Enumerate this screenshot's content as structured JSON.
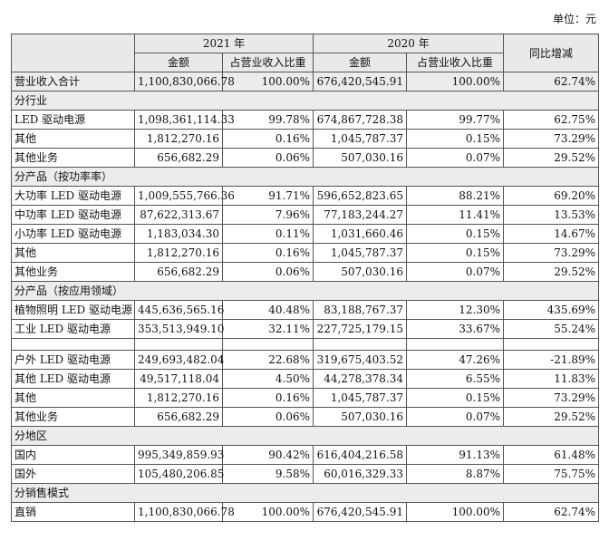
{
  "unit": "单位：元",
  "header": {
    "year1": "2021 年",
    "year2": "2020 年",
    "change": "同比增减",
    "amount1": "金额",
    "ratio1": "占营业收入比重",
    "amount2": "金额",
    "ratio2": "占营业收入比重"
  },
  "table": {
    "rows": [
      {
        "total": true,
        "cells": [
          "营业收入合计",
          "1,100,830,066.78",
          "100.00%",
          "676,420,545.91",
          "100.00%",
          "62.74%"
        ]
      },
      {
        "section": "分行业"
      },
      {
        "cells": [
          "LED 驱动电源",
          "1,098,361,114.33",
          "99.78%",
          "674,867,728.38",
          "99.77%",
          "62.75%"
        ]
      },
      {
        "cells": [
          "其他",
          "1,812,270.16",
          "0.16%",
          "1,045,787.37",
          "0.15%",
          "73.29%"
        ]
      },
      {
        "cells": [
          "其他业务",
          "656,682.29",
          "0.06%",
          "507,030.16",
          "0.07%",
          "29.52%"
        ]
      },
      {
        "section": "分产品（按功率率）"
      },
      {
        "cells": [
          "大功率 LED 驱动电源",
          "1,009,555,766.36",
          "91.71%",
          "596,652,823.65",
          "88.21%",
          "69.20%"
        ]
      },
      {
        "cells": [
          "中功率 LED 驱动电源",
          "87,622,313.67",
          "7.96%",
          "77,183,244.27",
          "11.41%",
          "13.53%"
        ]
      },
      {
        "cells": [
          "小功率 LED 驱动电源",
          "1,183,034.30",
          "0.11%",
          "1,031,660.46",
          "0.15%",
          "14.67%"
        ]
      },
      {
        "cells": [
          "其他",
          "1,812,270.16",
          "0.16%",
          "1,045,787.37",
          "0.15%",
          "73.29%"
        ]
      },
      {
        "cells": [
          "其他业务",
          "656,682.29",
          "0.06%",
          "507,030.16",
          "0.07%",
          "29.52%"
        ]
      },
      {
        "section": "分产品（按应用领域）"
      },
      {
        "cells": [
          "植物照明 LED 驱动电源",
          "445,636,565.16",
          "40.48%",
          "83,188,767.37",
          "12.30%",
          "435.69%"
        ]
      },
      {
        "cells": [
          "工业 LED 驱动电源",
          "353,513,949.10",
          "32.11%",
          "227,725,179.15",
          "33.67%",
          "55.24%"
        ]
      },
      {
        "cells": [
          "户外 LED 驱动电源",
          "249,693,482.04",
          "22.68%",
          "319,675,403.52",
          "47.26%",
          "-21.89%"
        ]
      },
      {
        "cells": [
          "其他 LED 驱动电源",
          "49,517,118.04",
          "4.50%",
          "44,278,378.34",
          "6.55%",
          "11.83%"
        ]
      },
      {
        "cells": [
          "其他",
          "1,812,270.16",
          "0.16%",
          "1,045,787.37",
          "0.15%",
          "73.29%"
        ]
      },
      {
        "cells": [
          "其他业务",
          "656,682.29",
          "0.06%",
          "507,030.16",
          "0.07%",
          "29.52%"
        ]
      },
      {
        "section": "分地区"
      },
      {
        "cells": [
          "国内",
          "995,349,859.93",
          "90.42%",
          "616,404,216.58",
          "91.13%",
          "61.48%"
        ]
      },
      {
        "cells": [
          "国外",
          "105,480,206.85",
          "9.58%",
          "60,016,329.33",
          "8.87%",
          "75.75%"
        ]
      },
      {
        "section": "分销售模式"
      },
      {
        "cells": [
          "直销",
          "1,100,830,066.78",
          "100.00%",
          "676,420,545.91",
          "100.00%",
          "62.74%"
        ]
      }
    ]
  }
}
